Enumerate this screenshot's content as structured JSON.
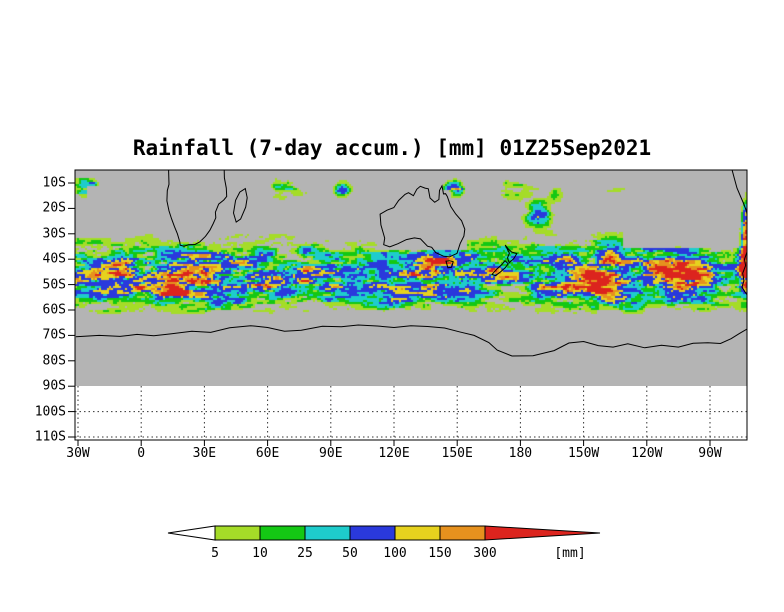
{
  "title": "Rainfall (7-day accum.) [mm] 01Z25Sep2021",
  "axes": {
    "y_ticks": [
      "10S",
      "20S",
      "30S",
      "40S",
      "50S",
      "60S",
      "70S",
      "80S",
      "90S",
      "100S",
      "110S"
    ],
    "x_ticks": [
      "30W",
      "0",
      "30E",
      "60E",
      "90E",
      "120E",
      "150E",
      "180",
      "150W",
      "120W",
      "90W"
    ]
  },
  "colorbar": {
    "boundary_labels": [
      "5",
      "10",
      "25",
      "50",
      "100",
      "150",
      "300"
    ],
    "unit_label": "[mm]",
    "below_min_color": "#ffffff"
  },
  "chart_data": {
    "type": "heatmap",
    "title": "Rainfall (7-day accum.) [mm] 01Z25Sep2021",
    "variable": "Rainfall, 7-day accumulation",
    "units": "mm",
    "valid_time": "01Z25Sep2021",
    "projection": "latlon",
    "lat_axis": {
      "ticks_deg_south": [
        10,
        20,
        30,
        40,
        50,
        60,
        70,
        80,
        90,
        100,
        110
      ],
      "map_data_extent_deg_south": [
        5,
        90
      ]
    },
    "lon_axis": {
      "ticks": [
        "30W",
        "0",
        "30E",
        "60E",
        "90E",
        "120E",
        "150E",
        "180",
        "150W",
        "120W",
        "90W"
      ],
      "range_deg_east": [
        -31.5,
        287.5
      ]
    },
    "levels_mm": [
      5,
      10,
      25,
      50,
      100,
      150,
      300
    ],
    "level_colors": [
      "#a5dc28",
      "#14c814",
      "#1ecccc",
      "#2a39dc",
      "#e6d21e",
      "#e6911e",
      "#dc241e"
    ],
    "no_rain_color": "#b4b4b4",
    "below_90S_fill": "#ffffff",
    "description": "Patchy mid-latitude storm-track rainfall belt (green/cyan/blue) spanning roughly 25S-63S at all longitudes; gray indicates below 5 mm; isolated heavy (yellow/orange/red) cells near 90E-150E and 170W-160W around 10S-25S and along the Andes at the right edge; Antarctica and subtropical gyres dry.",
    "render": {
      "thresholds": [
        0.3,
        0.4,
        0.5,
        0.62,
        0.78,
        0.88,
        0.98
      ],
      "band": {
        "center_lat_S": 46,
        "sigma_deg": 15,
        "south_cut_start": 59,
        "south_cut_end": 66
      },
      "hotspots": [
        [
          95,
          12,
          5,
          4,
          0.7
        ],
        [
          150,
          13,
          4,
          3.5,
          0.5
        ],
        [
          188,
          22,
          7,
          5,
          0.8
        ],
        [
          197,
          14,
          5,
          4,
          0.55
        ],
        [
          286.5,
          27,
          2.2,
          13,
          0.9
        ],
        [
          286,
          45,
          2.5,
          8,
          0.65
        ],
        [
          60,
          47,
          9,
          4,
          0.35
        ],
        [
          14,
          52,
          10,
          4,
          0.35
        ],
        [
          118,
          55,
          10,
          4,
          0.3
        ],
        [
          214,
          50,
          9,
          4,
          0.3
        ],
        [
          250,
          46,
          8,
          4,
          0.3
        ]
      ],
      "dry_boxes": [
        [
          112,
          154,
          12.5,
          36,
          0.28
        ],
        [
          9,
          36,
          5,
          32,
          0.3
        ],
        [
          228,
          283,
          15,
          35,
          0.45
        ],
        [
          -26,
          8,
          11,
          26,
          0.5
        ]
      ]
    },
    "coastlines": [
      {
        "name": "africa",
        "closed": false,
        "points": [
          [
            13.0,
            4.9
          ],
          [
            13.2,
            10.5
          ],
          [
            12.4,
            13
          ],
          [
            12.2,
            17
          ],
          [
            13.2,
            21
          ],
          [
            14.4,
            24
          ],
          [
            15.7,
            27
          ],
          [
            17.2,
            30
          ],
          [
            18.3,
            33.2
          ],
          [
            18.5,
            34.5
          ],
          [
            20.3,
            34.9
          ],
          [
            22.5,
            34.3
          ],
          [
            25.5,
            34.2
          ],
          [
            27.8,
            33.2
          ],
          [
            30.5,
            31
          ],
          [
            32.6,
            28.6
          ],
          [
            34.2,
            26
          ],
          [
            35.4,
            23.7
          ],
          [
            35.2,
            21.5
          ],
          [
            36.8,
            18.3
          ],
          [
            39.2,
            16.7
          ],
          [
            40.6,
            15.3
          ],
          [
            40.4,
            12
          ],
          [
            39.5,
            8
          ],
          [
            39.4,
            4.9
          ]
        ]
      },
      {
        "name": "madagascar",
        "closed": true,
        "points": [
          [
            49.4,
            12.2
          ],
          [
            50.3,
            15.8
          ],
          [
            49.6,
            19.5
          ],
          [
            47.2,
            24.2
          ],
          [
            45.1,
            25.4
          ],
          [
            43.8,
            21.8
          ],
          [
            44.8,
            16.8
          ],
          [
            46.8,
            13.6
          ]
        ]
      },
      {
        "name": "australia",
        "closed": true,
        "points": [
          [
            113.4,
            22.3
          ],
          [
            113.8,
            26.5
          ],
          [
            115.6,
            31.7
          ],
          [
            115.1,
            34.3
          ],
          [
            118.0,
            35.1
          ],
          [
            121.9,
            33.9
          ],
          [
            125.9,
            32.3
          ],
          [
            129.7,
            31.6
          ],
          [
            132.6,
            32.0
          ],
          [
            135.9,
            34.9
          ],
          [
            137.9,
            35.3
          ],
          [
            139.8,
            37.4
          ],
          [
            143.5,
            38.8
          ],
          [
            146.3,
            39.1
          ],
          [
            149.9,
            37.7
          ],
          [
            151.4,
            33.9
          ],
          [
            153.2,
            30.9
          ],
          [
            153.6,
            28.2
          ],
          [
            152.1,
            24.9
          ],
          [
            149.3,
            22.2
          ],
          [
            146.9,
            19.2
          ],
          [
            145.3,
            15.3
          ],
          [
            144.5,
            14.2
          ],
          [
            143.5,
            14.3
          ],
          [
            142.8,
            11.1
          ],
          [
            141.6,
            12.9
          ],
          [
            141.3,
            16.5
          ],
          [
            139.3,
            17.6
          ],
          [
            137.1,
            15.9
          ],
          [
            136.3,
            12.3
          ],
          [
            134.7,
            12.0
          ],
          [
            132.5,
            11.3
          ],
          [
            130.8,
            12.5
          ],
          [
            129.2,
            15.0
          ],
          [
            126.9,
            13.8
          ],
          [
            125.2,
            14.5
          ],
          [
            122.2,
            16.9
          ],
          [
            119.9,
            19.7
          ],
          [
            116.7,
            20.7
          ]
        ]
      },
      {
        "name": "tasmania",
        "closed": true,
        "points": [
          [
            144.7,
            40.8
          ],
          [
            145.6,
            43.4
          ],
          [
            147.3,
            43.2
          ],
          [
            148.1,
            41
          ],
          [
            146.3,
            40.6
          ]
        ]
      },
      {
        "name": "new-zealand-north",
        "closed": true,
        "points": [
          [
            172.8,
            34.4
          ],
          [
            174.5,
            36.2
          ],
          [
            175.9,
            37.2
          ],
          [
            178.3,
            37.8
          ],
          [
            176.8,
            39.8
          ],
          [
            174.7,
            41.4
          ],
          [
            173.9,
            39.5
          ],
          [
            174.8,
            37.6
          ]
        ]
      },
      {
        "name": "new-zealand-south",
        "closed": true,
        "points": [
          [
            172.7,
            40.6
          ],
          [
            174.2,
            41.8
          ],
          [
            172.8,
            43.4
          ],
          [
            170.7,
            44.9
          ],
          [
            168.2,
            46.5
          ],
          [
            166.5,
            46
          ],
          [
            168.8,
            43.9
          ],
          [
            171.3,
            42
          ]
        ]
      },
      {
        "name": "south-america-upper",
        "closed": false,
        "points": [
          [
            280.5,
            4.9
          ],
          [
            281.5,
            8
          ],
          [
            282.8,
            12
          ],
          [
            284.6,
            15.5
          ],
          [
            285.9,
            18
          ],
          [
            287.3,
            21
          ],
          [
            287.6,
            22.5
          ]
        ]
      },
      {
        "name": "south-america-lower",
        "closed": false,
        "points": [
          [
            287.6,
            37
          ],
          [
            286.4,
            40
          ],
          [
            286.9,
            42.5
          ],
          [
            285.5,
            45.5
          ],
          [
            286.1,
            48.5
          ],
          [
            285.2,
            51
          ],
          [
            286.5,
            52.8
          ],
          [
            287.6,
            54
          ]
        ]
      },
      {
        "name": "antarctica",
        "closed": false,
        "points": [
          [
            -31,
            70.5
          ],
          [
            -20,
            70
          ],
          [
            -10,
            70.4
          ],
          [
            -2,
            69.6
          ],
          [
            6,
            70.1
          ],
          [
            14,
            69.4
          ],
          [
            24,
            68.4
          ],
          [
            33,
            68.8
          ],
          [
            42,
            67
          ],
          [
            52,
            66.2
          ],
          [
            60,
            66.9
          ],
          [
            68,
            68.4
          ],
          [
            76,
            68
          ],
          [
            86,
            66.4
          ],
          [
            95,
            66.6
          ],
          [
            103,
            65.9
          ],
          [
            112,
            66.3
          ],
          [
            120,
            66.9
          ],
          [
            128,
            66.2
          ],
          [
            136,
            66.5
          ],
          [
            144,
            67.1
          ],
          [
            151,
            68.6
          ],
          [
            158,
            70
          ],
          [
            165,
            72.8
          ],
          [
            169,
            75.8
          ],
          [
            176,
            78.1
          ],
          [
            186,
            78
          ],
          [
            196,
            76
          ],
          [
            203,
            73
          ],
          [
            210,
            72.4
          ],
          [
            217,
            74
          ],
          [
            224,
            74.6
          ],
          [
            231,
            73.3
          ],
          [
            239,
            74.9
          ],
          [
            247,
            73.9
          ],
          [
            255,
            74.6
          ],
          [
            262,
            73.1
          ],
          [
            269,
            72.9
          ],
          [
            275,
            73.2
          ],
          [
            280,
            71.3
          ],
          [
            284,
            69.2
          ],
          [
            288,
            67.3
          ]
        ]
      }
    ]
  }
}
